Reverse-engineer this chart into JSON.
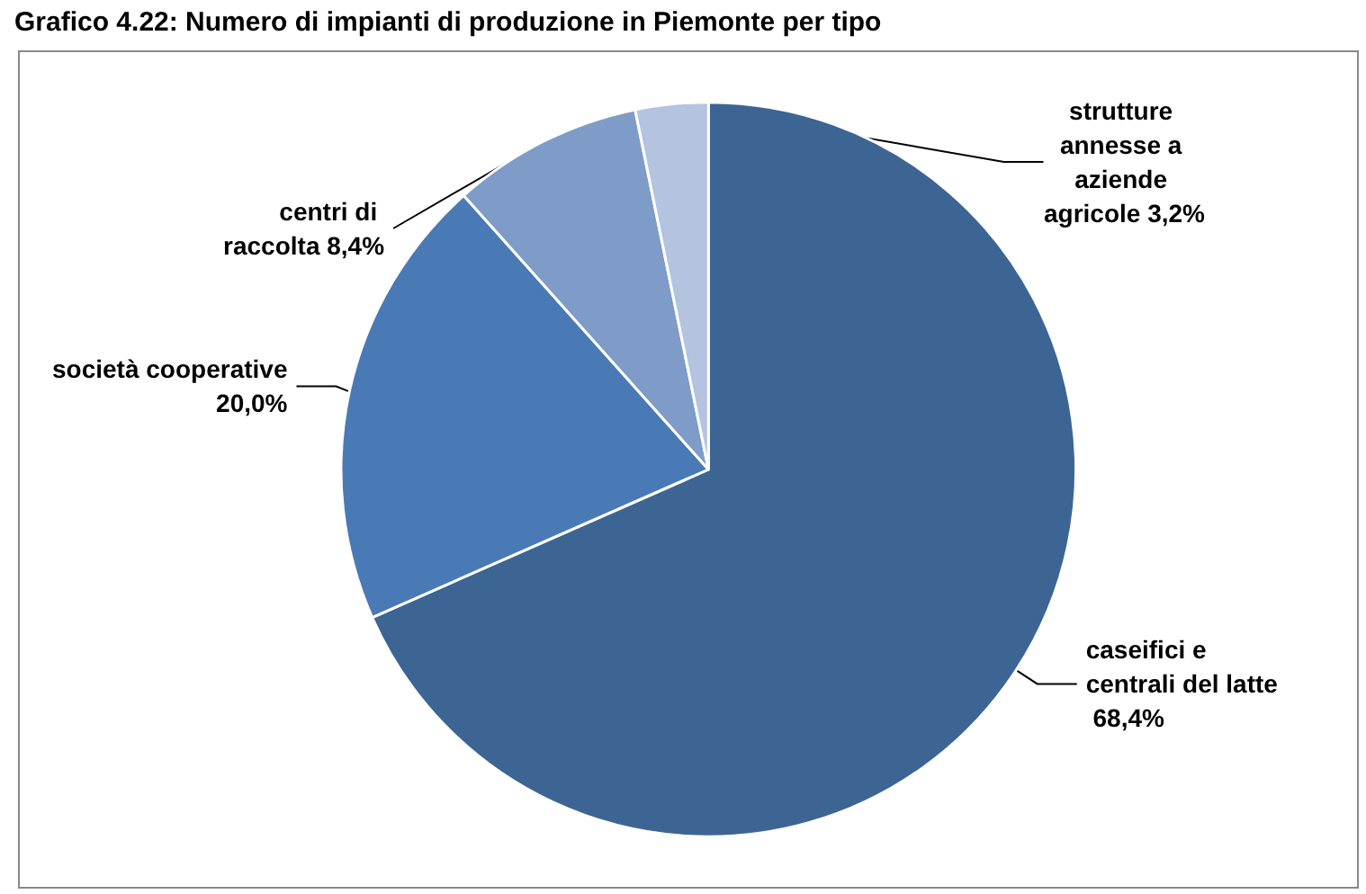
{
  "chart_data": {
    "type": "pie",
    "title": "Grafico 4.22: Numero di impianti di produzione in Piemonte per tipo",
    "categories": [
      "caseifici e centrali del latte",
      "società cooperative",
      "centri di raccolta",
      "strutture annesse a aziende agricole"
    ],
    "values": [
      68.4,
      20.0,
      8.4,
      3.2
    ],
    "value_labels": [
      "68,4%",
      "20,0%",
      "8,4%",
      "3,2%"
    ],
    "colors": [
      "#3d6594",
      "#4a7ab5",
      "#7f9cc8",
      "#b3c3e0"
    ]
  }
}
